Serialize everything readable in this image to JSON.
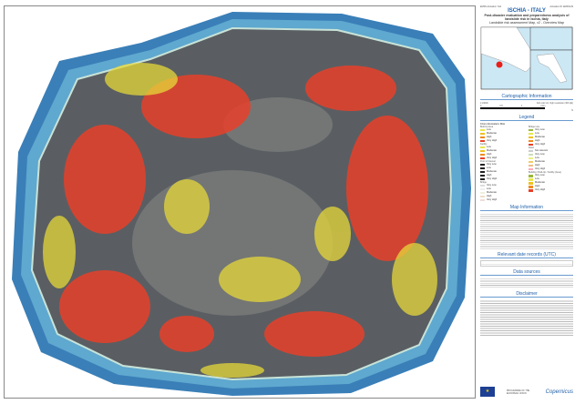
{
  "header": {
    "title": "ISCHIA - ITALY",
    "subtitle": "Post-disaster evaluation and preparedness analysis of landslide risk in Ischia, Italy",
    "map_name": "Landslide risk assessment Map, v2 - Overview Map",
    "top_left": "EMSN Activation: N/A",
    "top_right": "Activation ID: EMSN129"
  },
  "sections": {
    "cartographic": "Cartographic Information",
    "legend": "Legend",
    "map_info": "Map Information",
    "dates": "Relevant date records (UTC)",
    "sources": "Data sources",
    "disclaimer": "Disclaimer"
  },
  "cartographic": {
    "scale": "1:19000",
    "format": "Full color A1, high resolution (300 dpi)",
    "scalebar": [
      "0",
      "0.5",
      "1",
      "2 km"
    ],
    "north": "N"
  },
  "legend": {
    "group_title": "Crisis information: Risk",
    "built_up": {
      "title": "Built-Up Area",
      "items": [
        "Low",
        "Moderate",
        "High",
        "Very High"
      ]
    },
    "facility": {
      "title": "Facility",
      "items": [
        "Low",
        "Moderate",
        "High",
        "Very High"
      ]
    },
    "poi": {
      "title": "Point of Interest",
      "items": [
        "Very Low",
        "Low",
        "Moderate",
        "High",
        "Very High"
      ]
    },
    "bridge": {
      "title": "Bridge",
      "items": [
        "Very Low",
        "Low",
        "Moderate",
        "High",
        "Very High"
      ]
    },
    "bridge_line": {
      "title": "Bridge Line",
      "items": [
        "Very Low",
        "Low",
        "Moderate",
        "High",
        "Very High"
      ]
    },
    "road": {
      "title": "Road",
      "items": [
        "Not relevant",
        "Very Low",
        "Low",
        "Moderate",
        "High",
        "Very High"
      ]
    },
    "building": {
      "title": "Building / Built-Up / Facility (Area)",
      "items": [
        "Very Low",
        "Low",
        "Moderate",
        "High",
        "Very High"
      ]
    }
  },
  "risk_colors": {
    "very_low": "#9ab83a",
    "low": "#e6e84a",
    "moderate": "#f0c020",
    "high": "#f08a20",
    "very_high": "#e8402a"
  },
  "footer": {
    "program": "PROGRAMME OF THE EUROPEAN UNION",
    "brand": "Copernicus"
  }
}
